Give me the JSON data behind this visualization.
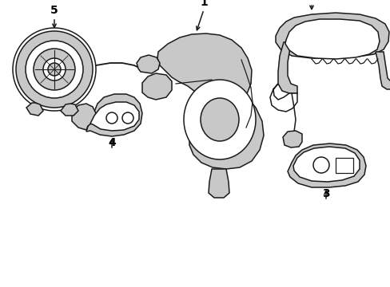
{
  "background_color": "#ffffff",
  "line_color": "#1a1a1a",
  "line_width": 1.1,
  "gray_fill": "#c8c8c8",
  "white_fill": "#ffffff",
  "fig_width": 4.89,
  "fig_height": 3.6,
  "dpi": 100,
  "label_fontsize": 10
}
